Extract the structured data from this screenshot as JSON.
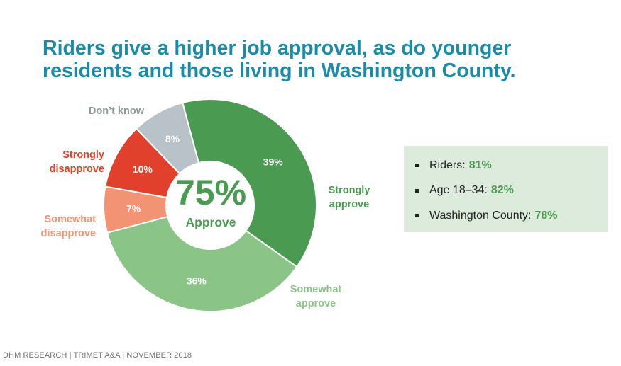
{
  "title": {
    "line1": "Riders give a higher job approval, as do younger",
    "line2": "residents and those living in Washington County."
  },
  "chart_data": {
    "type": "pie",
    "title": "",
    "center": {
      "value": "75%",
      "label": "Approve"
    },
    "slices": [
      {
        "name": "Strongly approve",
        "label_lines": [
          "Strongly",
          "approve"
        ],
        "value": 39,
        "value_label": "39%",
        "color": "#4a9a52",
        "label_color": "#4a9a52"
      },
      {
        "name": "Somewhat approve",
        "label_lines": [
          "Somewhat",
          "approve"
        ],
        "value": 36,
        "value_label": "36%",
        "color": "#8bc487",
        "label_color": "#8bc487"
      },
      {
        "name": "Somewhat disapprove",
        "label_lines": [
          "Somewhat",
          "disapprove"
        ],
        "value": 7,
        "value_label": "7%",
        "color": "#f29374",
        "label_color": "#f29374"
      },
      {
        "name": "Strongly disapprove",
        "label_lines": [
          "Strongly",
          "disapprove"
        ],
        "value": 10,
        "value_label": "10%",
        "color": "#e1412c",
        "label_color": "#e1412c"
      },
      {
        "name": "Don't know",
        "label_lines": [
          "Don’t know"
        ],
        "value": 8,
        "value_label": "8%",
        "color": "#b8c2c8",
        "label_color": "#8c979e"
      }
    ]
  },
  "stats": [
    {
      "label": "Riders:",
      "value": "81%"
    },
    {
      "label": "Age 18–34:",
      "value": "82%"
    },
    {
      "label": "Washington County:",
      "value": "78%"
    }
  ],
  "colors": {
    "title": "#1d8ba6",
    "accent_green": "#4a9a52",
    "stats_background": "#dcebdb"
  },
  "footer": "DHM RESEARCH | TRIMET A&A | NOVEMBER 2018"
}
